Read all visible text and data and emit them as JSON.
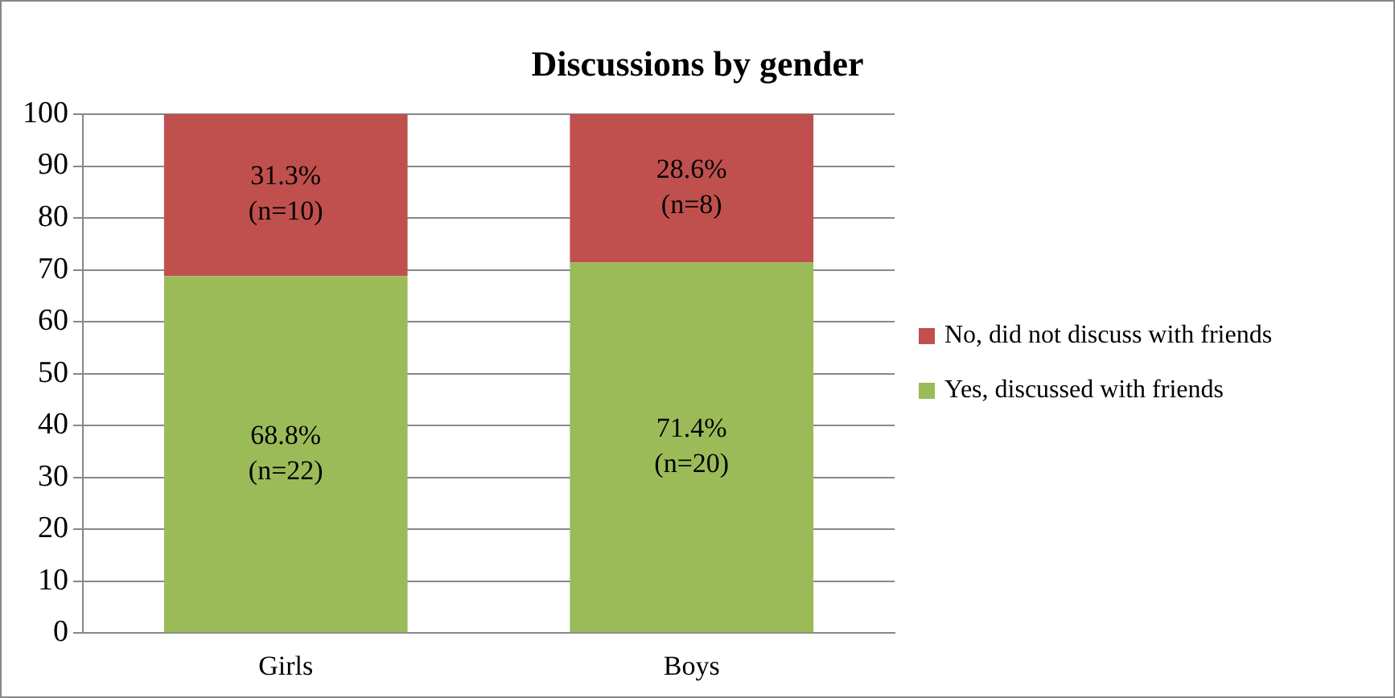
{
  "chart_data": {
    "type": "bar",
    "title": "Discussions by gender",
    "categories": [
      "Girls",
      "Boys"
    ],
    "stacked": true,
    "series": [
      {
        "name": "Yes, discussed with friends",
        "color": "#9bbb59",
        "values": [
          68.8,
          71.4
        ],
        "value_labels": [
          "68.8%\n(n=22)",
          "71.4%\n(n=20)"
        ]
      },
      {
        "name": "No, did not discuss with friends",
        "color": "#c0504d",
        "values": [
          31.3,
          28.6
        ],
        "value_labels": [
          "31.3%\n(n=10)",
          "28.6%\n(n=8)"
        ]
      }
    ],
    "ylim": [
      0,
      100
    ],
    "yticks": [
      0,
      10,
      20,
      30,
      40,
      50,
      60,
      70,
      80,
      90,
      100
    ],
    "grid": "y",
    "legend": "right"
  }
}
